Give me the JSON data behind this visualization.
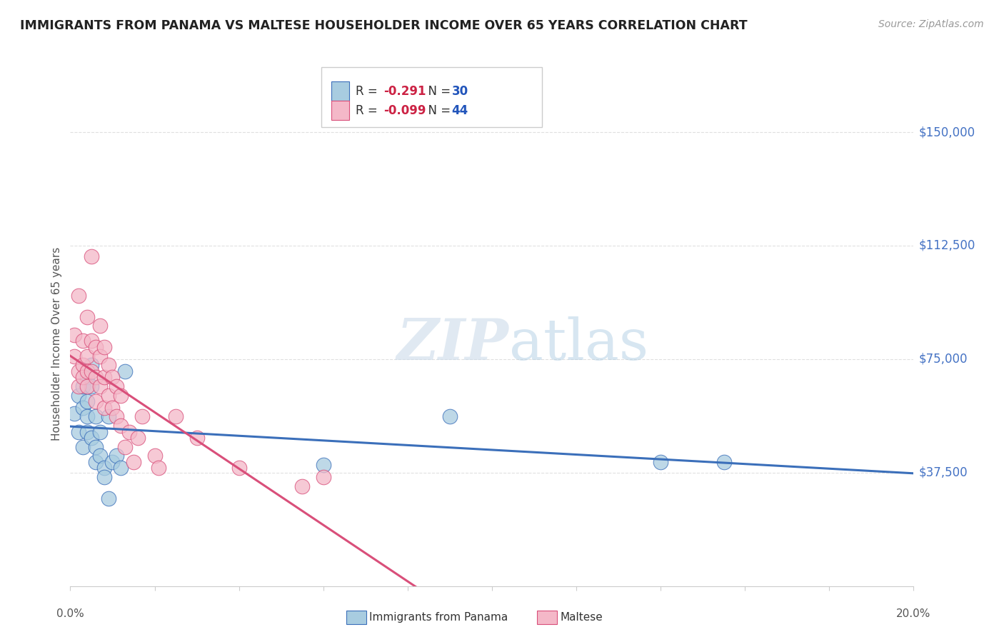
{
  "title": "IMMIGRANTS FROM PANAMA VS MALTESE HOUSEHOLDER INCOME OVER 65 YEARS CORRELATION CHART",
  "source": "Source: ZipAtlas.com",
  "ylabel": "Householder Income Over 65 years",
  "y_ticks": [
    0,
    37500,
    75000,
    112500,
    150000
  ],
  "y_tick_labels": [
    "",
    "$37,500",
    "$75,000",
    "$112,500",
    "$150,000"
  ],
  "x_min": 0.0,
  "x_max": 0.2,
  "y_min": 0,
  "y_max": 160000,
  "legend_blue_R": "-0.291",
  "legend_blue_N": "30",
  "legend_pink_R": "-0.099",
  "legend_pink_N": "44",
  "blue_color": "#a8cce0",
  "pink_color": "#f4b8c8",
  "blue_line_color": "#3b6fba",
  "pink_line_color": "#d94f7a",
  "watermark": "ZIPatlas",
  "blue_points_x": [
    0.001,
    0.002,
    0.002,
    0.003,
    0.003,
    0.003,
    0.004,
    0.004,
    0.004,
    0.004,
    0.005,
    0.005,
    0.005,
    0.006,
    0.006,
    0.006,
    0.007,
    0.007,
    0.008,
    0.008,
    0.009,
    0.009,
    0.01,
    0.011,
    0.012,
    0.013,
    0.06,
    0.09,
    0.14,
    0.155
  ],
  "blue_points_y": [
    57000,
    63000,
    51000,
    59000,
    66000,
    46000,
    69000,
    61000,
    56000,
    51000,
    73000,
    66000,
    49000,
    56000,
    46000,
    41000,
    51000,
    43000,
    39000,
    36000,
    29000,
    56000,
    41000,
    43000,
    39000,
    71000,
    40000,
    56000,
    41000,
    41000
  ],
  "pink_points_x": [
    0.001,
    0.001,
    0.002,
    0.002,
    0.002,
    0.003,
    0.003,
    0.003,
    0.004,
    0.004,
    0.004,
    0.004,
    0.005,
    0.005,
    0.005,
    0.006,
    0.006,
    0.006,
    0.007,
    0.007,
    0.007,
    0.008,
    0.008,
    0.008,
    0.009,
    0.009,
    0.01,
    0.01,
    0.011,
    0.011,
    0.012,
    0.012,
    0.013,
    0.014,
    0.015,
    0.016,
    0.017,
    0.02,
    0.021,
    0.025,
    0.03,
    0.04,
    0.055,
    0.06
  ],
  "pink_points_y": [
    76000,
    83000,
    96000,
    71000,
    66000,
    81000,
    73000,
    69000,
    89000,
    76000,
    71000,
    66000,
    109000,
    81000,
    71000,
    79000,
    69000,
    61000,
    86000,
    76000,
    66000,
    79000,
    69000,
    59000,
    73000,
    63000,
    69000,
    59000,
    66000,
    56000,
    63000,
    53000,
    46000,
    51000,
    41000,
    49000,
    56000,
    43000,
    39000,
    56000,
    49000,
    39000,
    33000,
    36000
  ],
  "background_color": "#ffffff",
  "grid_color": "#e0e0e0",
  "title_color": "#222222",
  "source_color": "#999999",
  "ytick_color": "#4472c4",
  "xtick_color": "#555555"
}
